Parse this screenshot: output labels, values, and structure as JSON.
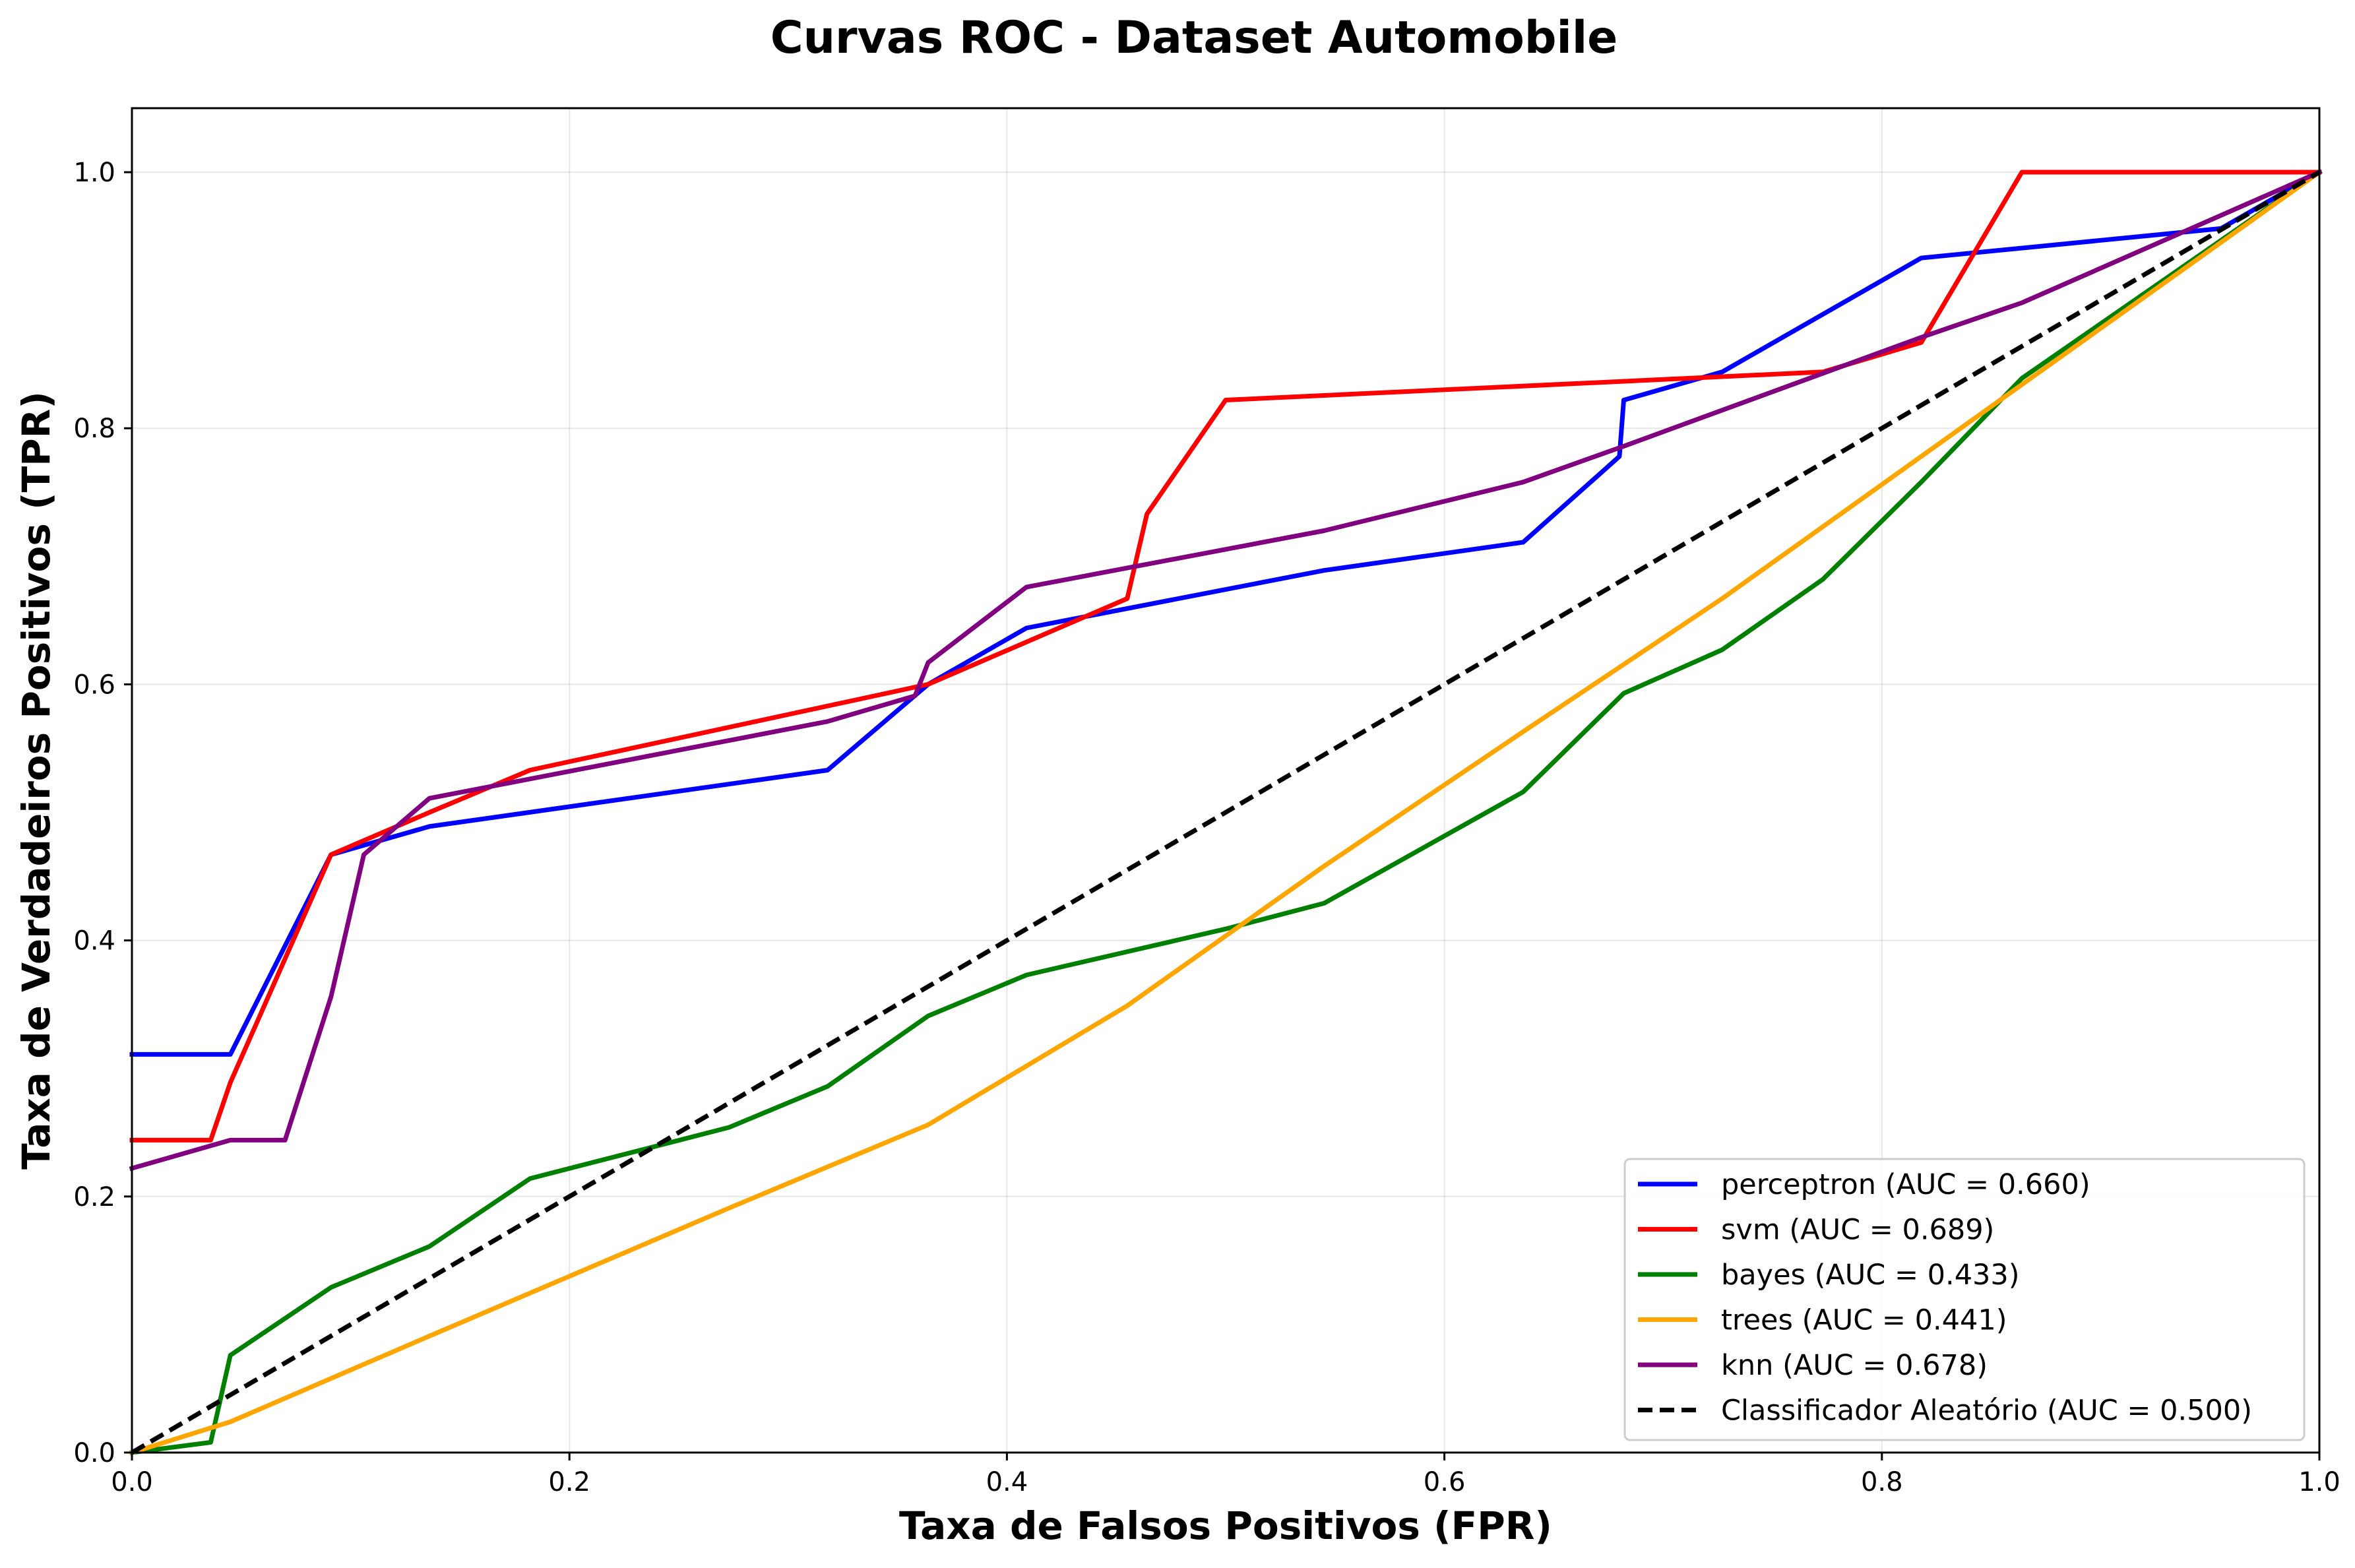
{
  "chart_data": {
    "type": "line",
    "title": "Curvas ROC - Dataset Automobile",
    "xlabel": "Taxa de Falsos Positivos (FPR)",
    "ylabel": "Taxa de Verdadeiros Positivos (TPR)",
    "xlim": [
      0.0,
      1.0
    ],
    "ylim": [
      0.0,
      1.05
    ],
    "x_ticks": [
      "0.0",
      "0.2",
      "0.4",
      "0.6",
      "0.8",
      "1.0"
    ],
    "y_ticks": [
      "0.0",
      "0.2",
      "0.4",
      "0.6",
      "0.8",
      "1.0"
    ],
    "grid": true,
    "legend_position": "lower right",
    "series": [
      {
        "name": "perceptron (AUC = 0.660)",
        "color": "#0000ff",
        "dashed": false,
        "points": [
          [
            0.0,
            0.311
          ],
          [
            0.045,
            0.311
          ],
          [
            0.091,
            0.467
          ],
          [
            0.136,
            0.489
          ],
          [
            0.318,
            0.533
          ],
          [
            0.364,
            0.6
          ],
          [
            0.409,
            0.644
          ],
          [
            0.545,
            0.689
          ],
          [
            0.636,
            0.711
          ],
          [
            0.68,
            0.778
          ],
          [
            0.682,
            0.822
          ],
          [
            0.727,
            0.844
          ],
          [
            0.818,
            0.933
          ],
          [
            0.955,
            0.956
          ],
          [
            1.0,
            1.0
          ]
        ]
      },
      {
        "name": "svm (AUC = 0.689)",
        "color": "#ff0000",
        "dashed": false,
        "points": [
          [
            0.0,
            0.244
          ],
          [
            0.036,
            0.244
          ],
          [
            0.045,
            0.289
          ],
          [
            0.091,
            0.467
          ],
          [
            0.136,
            0.5
          ],
          [
            0.182,
            0.533
          ],
          [
            0.364,
            0.6
          ],
          [
            0.455,
            0.667
          ],
          [
            0.464,
            0.733
          ],
          [
            0.5,
            0.822
          ],
          [
            0.773,
            0.844
          ],
          [
            0.818,
            0.867
          ],
          [
            0.864,
            1.0
          ],
          [
            1.0,
            1.0
          ]
        ]
      },
      {
        "name": "bayes (AUC = 0.433)",
        "color": "#008000",
        "dashed": false,
        "points": [
          [
            0.0,
            0.0
          ],
          [
            0.036,
            0.008
          ],
          [
            0.045,
            0.076
          ],
          [
            0.091,
            0.129
          ],
          [
            0.136,
            0.161
          ],
          [
            0.182,
            0.214
          ],
          [
            0.273,
            0.254
          ],
          [
            0.318,
            0.286
          ],
          [
            0.364,
            0.341
          ],
          [
            0.409,
            0.373
          ],
          [
            0.5,
            0.409
          ],
          [
            0.545,
            0.429
          ],
          [
            0.636,
            0.516
          ],
          [
            0.682,
            0.593
          ],
          [
            0.727,
            0.627
          ],
          [
            0.773,
            0.682
          ],
          [
            0.818,
            0.758
          ],
          [
            0.864,
            0.839
          ],
          [
            1.0,
            1.0
          ]
        ]
      },
      {
        "name": "trees (AUC = 0.441)",
        "color": "#ffa500",
        "dashed": false,
        "points": [
          [
            0.0,
            0.0
          ],
          [
            0.045,
            0.024
          ],
          [
            0.136,
            0.091
          ],
          [
            0.273,
            0.191
          ],
          [
            0.364,
            0.256
          ],
          [
            0.455,
            0.349
          ],
          [
            0.545,
            0.458
          ],
          [
            0.636,
            0.563
          ],
          [
            0.727,
            0.667
          ],
          [
            0.818,
            0.778
          ],
          [
            0.909,
            0.889
          ],
          [
            1.0,
            1.0
          ]
        ]
      },
      {
        "name": "knn (AUC = 0.678)",
        "color": "#800080",
        "dashed": false,
        "points": [
          [
            0.0,
            0.222
          ],
          [
            0.045,
            0.244
          ],
          [
            0.07,
            0.244
          ],
          [
            0.091,
            0.356
          ],
          [
            0.106,
            0.467
          ],
          [
            0.136,
            0.511
          ],
          [
            0.318,
            0.571
          ],
          [
            0.358,
            0.591
          ],
          [
            0.364,
            0.617
          ],
          [
            0.409,
            0.676
          ],
          [
            0.545,
            0.72
          ],
          [
            0.636,
            0.758
          ],
          [
            0.682,
            0.786
          ],
          [
            0.818,
            0.871
          ],
          [
            0.864,
            0.898
          ],
          [
            1.0,
            1.0
          ]
        ]
      },
      {
        "name": "Classificador Aleatório (AUC = 0.500)",
        "color": "#000000",
        "dashed": true,
        "points": [
          [
            0.0,
            0.0
          ],
          [
            1.0,
            1.0
          ]
        ]
      }
    ]
  }
}
